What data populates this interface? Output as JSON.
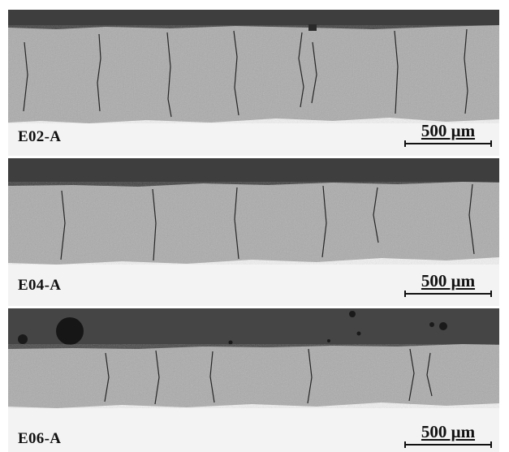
{
  "panels": [
    {
      "label": "E02-A",
      "scale_text": "500 μm"
    },
    {
      "label": "E04-A",
      "scale_text": "500 μm"
    },
    {
      "label": "E06-A",
      "scale_text": "500 μm"
    }
  ],
  "colors": {
    "resin": "#3f3f3f",
    "coating": "#a9a9a9",
    "substrate": "#f2f2f2",
    "crack": "#222222"
  }
}
